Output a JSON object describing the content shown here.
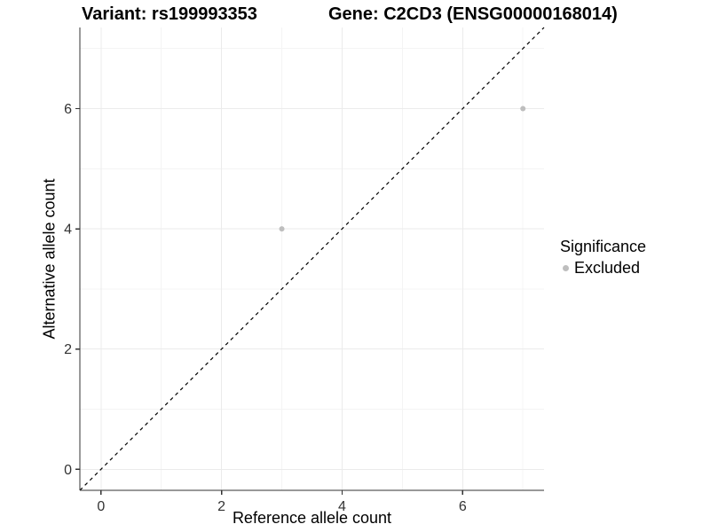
{
  "chart_data": {
    "type": "scatter",
    "title_left": "Variant: rs199993353",
    "title_right": "Gene: C2CD3 (ENSG00000168014)",
    "xlabel": "Reference allele count",
    "ylabel": "Alternative allele count",
    "xlim": [
      -0.35,
      7.35
    ],
    "ylim": [
      -0.35,
      7.35
    ],
    "xticks": [
      0,
      2,
      4,
      6
    ],
    "yticks": [
      0,
      2,
      4,
      6
    ],
    "minor_ticks": [
      1,
      3,
      5,
      7
    ],
    "grid": "on",
    "identity_line": {
      "style": "dashed",
      "color": "#000000",
      "slope": 1,
      "intercept": 0
    },
    "series": [
      {
        "name": "Excluded",
        "color": "#bebebe",
        "points": [
          {
            "x": 3,
            "y": 4
          },
          {
            "x": 7,
            "y": 6
          }
        ]
      }
    ],
    "legend": {
      "title": "Significance",
      "position": "right",
      "items": [
        {
          "label": "Excluded",
          "color": "#bebebe"
        }
      ]
    }
  },
  "colors": {
    "background": "#ffffff",
    "grid_major": "#ebebeb",
    "grid_minor": "#f4f4f4",
    "axis": "#333333",
    "tick_label": "#333333",
    "title": "#000000",
    "point": "#bebebe"
  }
}
